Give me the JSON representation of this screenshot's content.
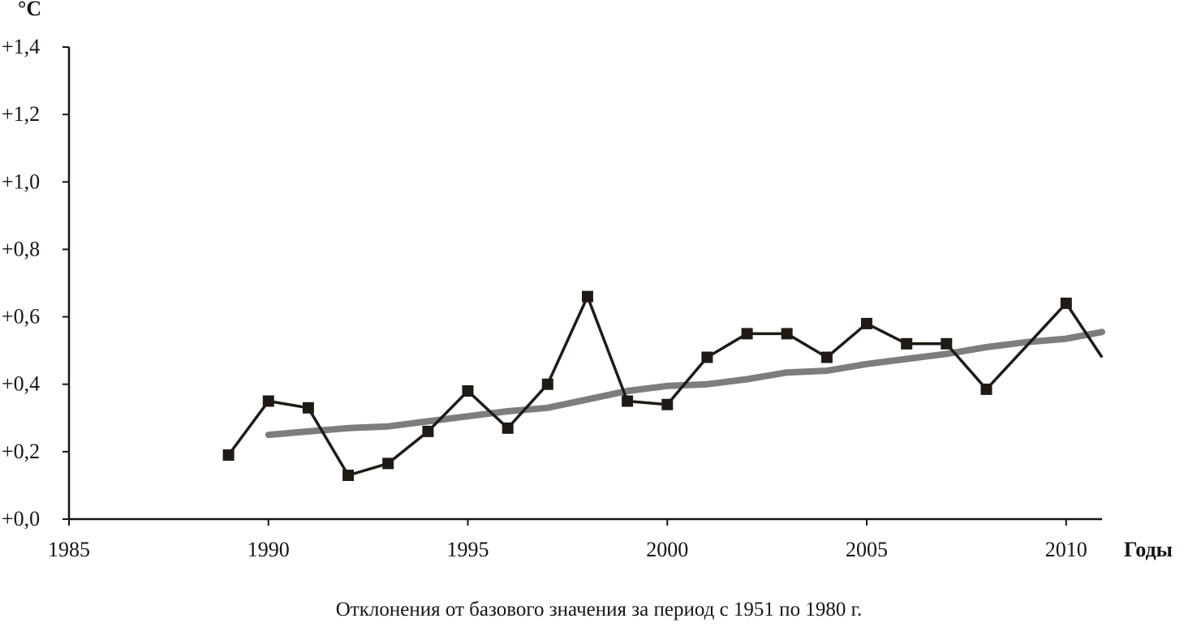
{
  "chart_data": {
    "type": "line",
    "title": "",
    "caption": "Отклонения от базового значения за период с 1951 по 1980 г.",
    "ylabel": "°C",
    "xlabel": "Годы",
    "xlim": [
      1985,
      2010.9
    ],
    "ylim": [
      0,
      1.4
    ],
    "x_ticks": [
      1985,
      1990,
      1995,
      2000,
      2005,
      2010
    ],
    "x_tick_labels": [
      "1985",
      "1990",
      "1995",
      "2000",
      "2005",
      "2010"
    ],
    "y_ticks": [
      0,
      0.2,
      0.4,
      0.6,
      0.8,
      1.0,
      1.2,
      1.4
    ],
    "y_tick_labels": [
      "+0,0",
      "+0,2",
      "+0,4",
      "+0,6",
      "+0,8",
      "+1,0",
      "+1,2",
      "+1,4"
    ],
    "grid": false,
    "series": [
      {
        "role": "annual",
        "color": "#1f1a14",
        "marker": "square",
        "x": [
          1989,
          1990,
          1991,
          1992,
          1993,
          1994,
          1995,
          1996,
          1997,
          1998,
          1999,
          2000,
          2001,
          2002,
          2003,
          2004,
          2005,
          2006,
          2007,
          2008,
          2010,
          2010.9
        ],
        "y": [
          0.19,
          0.35,
          0.33,
          0.13,
          0.165,
          0.26,
          0.38,
          0.27,
          0.4,
          0.66,
          0.35,
          0.34,
          0.48,
          0.55,
          0.55,
          0.48,
          0.58,
          0.52,
          0.52,
          0.385,
          0.64,
          0.48
        ],
        "markers_on": [
          true,
          true,
          true,
          true,
          true,
          true,
          true,
          true,
          true,
          true,
          true,
          true,
          true,
          true,
          true,
          true,
          true,
          true,
          true,
          true,
          true,
          false
        ]
      },
      {
        "role": "trend",
        "color": "#7d7d7d",
        "marker": "none",
        "x": [
          1990,
          1991,
          1992,
          1993,
          1994,
          1995,
          1996,
          1997,
          1998,
          1999,
          2000,
          2001,
          2002,
          2003,
          2004,
          2005,
          2006,
          2007,
          2008,
          2009,
          2010,
          2010.9
        ],
        "y": [
          0.25,
          0.26,
          0.27,
          0.275,
          0.29,
          0.305,
          0.32,
          0.33,
          0.355,
          0.38,
          0.395,
          0.4,
          0.415,
          0.435,
          0.44,
          0.46,
          0.475,
          0.49,
          0.51,
          0.525,
          0.535,
          0.555
        ]
      }
    ]
  }
}
